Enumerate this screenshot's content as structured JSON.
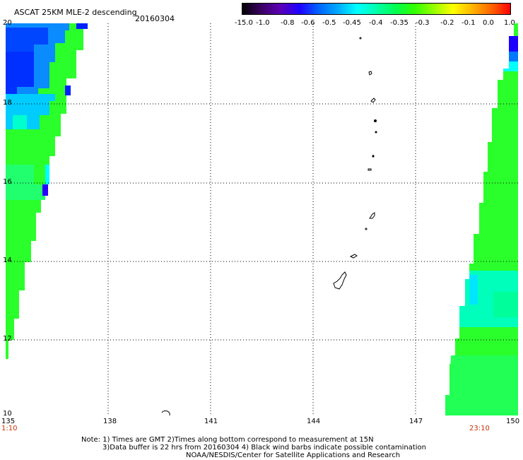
{
  "header": {
    "title": "ASCAT 25KM MLE-2 descending",
    "date": "20160304"
  },
  "colorbar": {
    "labels": [
      "-15.0",
      "-1.0",
      "-0.8",
      "-0.6",
      "-0.5",
      "-0.45",
      "-0.4",
      "-0.35",
      "-0.3",
      "-0.2",
      "-0.1",
      "0.0",
      "1.0"
    ],
    "colors": [
      "#000000",
      "#3c0064",
      "#5a00b4",
      "#1e00ff",
      "#0064ff",
      "#00aaff",
      "#00ffff",
      "#00ffaa",
      "#00ff50",
      "#32ff00",
      "#96ff00",
      "#ffff00",
      "#ffb400",
      "#ff6400",
      "#ff0000"
    ]
  },
  "map": {
    "lon_labels": [
      "135",
      "138",
      "141",
      "144",
      "147",
      "150"
    ],
    "lat_labels": [
      "20",
      "18",
      "16",
      "14",
      "12",
      "10"
    ],
    "start_time": "1:10",
    "end_time": "23:10"
  },
  "footer": {
    "line1": "Note: 1) Times are GMT 2)Times along bottom correspond to measurement at 15N",
    "line2": "3)Data buffer is 22 hrs from 20160304 4) Black wind barbs indicate possible contamination",
    "line3": "NOAA/NESDIS/Center for Satellite Applications and Research"
  }
}
